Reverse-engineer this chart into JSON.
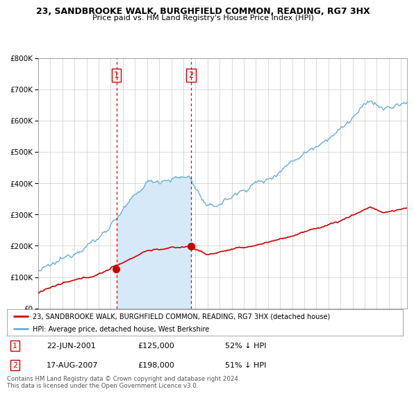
{
  "title": "23, SANDBROOKE WALK, BURGHFIELD COMMON, READING, RG7 3HX",
  "subtitle": "Price paid vs. HM Land Registry's House Price Index (HPI)",
  "hpi_color": "#6baed6",
  "hpi_fill_color": "#d6e9f8",
  "price_color": "#cc0000",
  "vline_color": "#cc0000",
  "background_color": "#ffffff",
  "grid_color": "#cccccc",
  "legend1": "23, SANDBROOKE WALK, BURGHFIELD COMMON, READING, RG7 3HX (detached house)",
  "legend2": "HPI: Average price, detached house, West Berkshire",
  "sale1_date": "22-JUN-2001",
  "sale1_price": "£125,000",
  "sale1_hpi": "52% ↓ HPI",
  "sale1_year": 2001.47,
  "sale1_value": 125000,
  "sale2_date": "17-AUG-2007",
  "sale2_price": "£198,000",
  "sale2_hpi": "51% ↓ HPI",
  "sale2_year": 2007.63,
  "sale2_value": 198000,
  "footer": "Contains HM Land Registry data © Crown copyright and database right 2024.\nThis data is licensed under the Open Government Licence v3.0.",
  "ylim": [
    0,
    800000
  ],
  "xlim_start": 1995.0,
  "xlim_end": 2025.5
}
